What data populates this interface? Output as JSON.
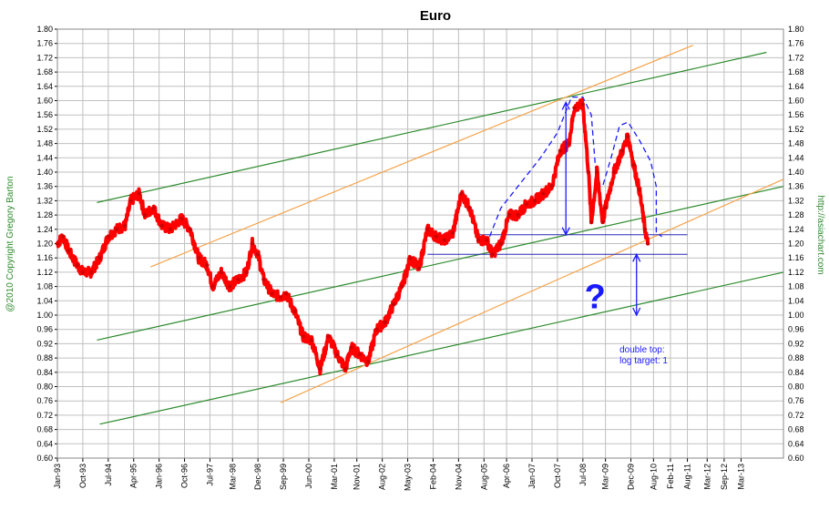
{
  "chart_data": {
    "type": "line",
    "title": "Euro",
    "left_side_label": "@2010 Copyright Gregory Barton",
    "right_side_label": "http://asiachart.com",
    "y_ticks": [
      0.6,
      0.64,
      0.68,
      0.72,
      0.76,
      0.8,
      0.84,
      0.88,
      0.92,
      0.96,
      1.0,
      1.04,
      1.08,
      1.12,
      1.16,
      1.2,
      1.24,
      1.28,
      1.32,
      1.36,
      1.4,
      1.44,
      1.48,
      1.52,
      1.56,
      1.6,
      1.64,
      1.68,
      1.72,
      1.76,
      1.8
    ],
    "y_tick_labels": [
      "0.60",
      "0.64",
      "0.68",
      "0.72",
      "0.76",
      "0.80",
      "0.84",
      "0.88",
      "0.92",
      "0.96",
      "1.00",
      "1.04",
      "1.08",
      "1.12",
      "1.16",
      "1.20",
      "1.24",
      "1.28",
      "1.32",
      "1.36",
      "1.40",
      "1.44",
      "1.48",
      "1.52",
      "1.56",
      "1.60",
      "1.64",
      "1.68",
      "1.72",
      "1.76",
      "1.80"
    ],
    "ylim": [
      0.6,
      1.8
    ],
    "xlim": [
      "1993-01",
      "2014-06"
    ],
    "x_ticks": [
      {
        "label": "Jan-93",
        "date": "1993-01"
      },
      {
        "label": "Oct-93",
        "date": "1993-10"
      },
      {
        "label": "Jul-94",
        "date": "1994-07"
      },
      {
        "label": "Apr-95",
        "date": "1995-04"
      },
      {
        "label": "Jan-96",
        "date": "1996-01"
      },
      {
        "label": "Oct-96",
        "date": "1996-10"
      },
      {
        "label": "Jul-97",
        "date": "1997-07"
      },
      {
        "label": "Mar-98",
        "date": "1998-03"
      },
      {
        "label": "Dec-98",
        "date": "1998-12"
      },
      {
        "label": "Sep-99",
        "date": "1999-09"
      },
      {
        "label": "Jun-00",
        "date": "2000-06"
      },
      {
        "label": "Mar-01",
        "date": "2001-03"
      },
      {
        "label": "Nov-01",
        "date": "2001-11"
      },
      {
        "label": "Aug-02",
        "date": "2002-08"
      },
      {
        "label": "May-03",
        "date": "2003-05"
      },
      {
        "label": "Feb-04",
        "date": "2004-02"
      },
      {
        "label": "Nov-04",
        "date": "2004-11"
      },
      {
        "label": "Aug-05",
        "date": "2005-08"
      },
      {
        "label": "Apr-06",
        "date": "2006-04"
      },
      {
        "label": "Jan-07",
        "date": "2007-01"
      },
      {
        "label": "Oct-07",
        "date": "2007-10"
      },
      {
        "label": "Jul-08",
        "date": "2008-07"
      },
      {
        "label": "Mar-09",
        "date": "2009-03"
      },
      {
        "label": "Dec-09",
        "date": "2009-12"
      },
      {
        "label": "Aug-10",
        "date": "2010-08"
      },
      {
        "label": "Feb-11",
        "date": "2011-02"
      },
      {
        "label": "Aug-11",
        "date": "2011-08"
      },
      {
        "label": "Mar-12",
        "date": "2012-03"
      },
      {
        "label": "Sep-12",
        "date": "2012-09"
      },
      {
        "label": "Mar-13",
        "date": "2013-03"
      }
    ],
    "grid": true,
    "legend": "none",
    "series": [
      {
        "color": "#ff0000",
        "points": [
          [
            "1993-01",
            1.2
          ],
          [
            "1993-03",
            1.22
          ],
          [
            "1993-05",
            1.18
          ],
          [
            "1993-08",
            1.14
          ],
          [
            "1993-10",
            1.12
          ],
          [
            "1994-01",
            1.12
          ],
          [
            "1994-04",
            1.16
          ],
          [
            "1994-07",
            1.22
          ],
          [
            "1994-10",
            1.24
          ],
          [
            "1995-01",
            1.25
          ],
          [
            "1995-03",
            1.32
          ],
          [
            "1995-06",
            1.34
          ],
          [
            "1995-08",
            1.28
          ],
          [
            "1995-11",
            1.3
          ],
          [
            "1996-02",
            1.25
          ],
          [
            "1996-05",
            1.24
          ],
          [
            "1996-09",
            1.27
          ],
          [
            "1996-12",
            1.24
          ],
          [
            "1997-03",
            1.16
          ],
          [
            "1997-06",
            1.14
          ],
          [
            "1997-08",
            1.08
          ],
          [
            "1997-11",
            1.12
          ],
          [
            "1998-02",
            1.08
          ],
          [
            "1998-05",
            1.1
          ],
          [
            "1998-08",
            1.12
          ],
          [
            "1998-10",
            1.2
          ],
          [
            "1998-12",
            1.17
          ],
          [
            "1999-02",
            1.1
          ],
          [
            "1999-05",
            1.06
          ],
          [
            "1999-08",
            1.05
          ],
          [
            "1999-10",
            1.06
          ],
          [
            "2000-01",
            1.01
          ],
          [
            "2000-04",
            0.94
          ],
          [
            "2000-07",
            0.93
          ],
          [
            "2000-10",
            0.85
          ],
          [
            "2001-01",
            0.94
          ],
          [
            "2001-04",
            0.89
          ],
          [
            "2001-07",
            0.85
          ],
          [
            "2001-09",
            0.91
          ],
          [
            "2001-12",
            0.89
          ],
          [
            "2002-03",
            0.87
          ],
          [
            "2002-06",
            0.96
          ],
          [
            "2002-09",
            0.98
          ],
          [
            "2002-12",
            1.03
          ],
          [
            "2003-03",
            1.08
          ],
          [
            "2003-06",
            1.16
          ],
          [
            "2003-09",
            1.13
          ],
          [
            "2003-12",
            1.24
          ],
          [
            "2004-03",
            1.22
          ],
          [
            "2004-06",
            1.21
          ],
          [
            "2004-09",
            1.23
          ],
          [
            "2004-12",
            1.34
          ],
          [
            "2005-03",
            1.3
          ],
          [
            "2005-06",
            1.21
          ],
          [
            "2005-09",
            1.21
          ],
          [
            "2005-11",
            1.17
          ],
          [
            "2006-02",
            1.2
          ],
          [
            "2006-05",
            1.28
          ],
          [
            "2006-08",
            1.28
          ],
          [
            "2006-11",
            1.31
          ],
          [
            "2007-02",
            1.32
          ],
          [
            "2007-05",
            1.34
          ],
          [
            "2007-08",
            1.36
          ],
          [
            "2007-11",
            1.46
          ],
          [
            "2008-02",
            1.48
          ],
          [
            "2008-04",
            1.58
          ],
          [
            "2008-07",
            1.59
          ],
          [
            "2008-09",
            1.4
          ],
          [
            "2008-10",
            1.26
          ],
          [
            "2008-12",
            1.4
          ],
          [
            "2009-02",
            1.26
          ],
          [
            "2009-03",
            1.3
          ],
          [
            "2009-06",
            1.4
          ],
          [
            "2009-09",
            1.46
          ],
          [
            "2009-11",
            1.5
          ],
          [
            "2010-01",
            1.42
          ],
          [
            "2010-03",
            1.35
          ],
          [
            "2010-05",
            1.24
          ],
          [
            "2010-06",
            1.2
          ]
        ]
      }
    ],
    "trendlines_green": [
      [
        [
          "1994-03",
          1.315
        ],
        [
          "2013-12",
          1.735
        ]
      ],
      [
        [
          "1994-03",
          0.93
        ],
        [
          "2014-06",
          1.36
        ]
      ],
      [
        [
          "1994-04",
          0.695
        ],
        [
          "2014-06",
          1.12
        ]
      ]
    ],
    "trendlines_orange": [
      [
        [
          "1995-10",
          1.135
        ],
        [
          "2011-10",
          1.755
        ]
      ],
      [
        [
          "1999-08",
          0.755
        ],
        [
          "2014-06",
          1.38
        ]
      ]
    ],
    "horizontal_levels": [
      {
        "y": 1.225,
        "from": "2005-06",
        "to": "2011-08"
      },
      {
        "y": 1.17,
        "from": "2003-12",
        "to": "2011-08"
      }
    ],
    "arrows": [
      {
        "x": "2008-01",
        "from": 1.595,
        "to": 1.225
      },
      {
        "x": "2010-02",
        "from": 1.17,
        "to": 1.0
      }
    ],
    "dashed_outline": [
      [
        "2005-10",
        1.22
      ],
      [
        "2006-02",
        1.3
      ],
      [
        "2006-10",
        1.38
      ],
      [
        "2007-04",
        1.44
      ],
      [
        "2007-10",
        1.51
      ],
      [
        "2008-03",
        1.61
      ],
      [
        "2008-07",
        1.61
      ],
      [
        "2008-10",
        1.56
      ],
      [
        "2008-12",
        1.36
      ],
      [
        "2009-02",
        1.36
      ],
      [
        "2009-05",
        1.44
      ],
      [
        "2009-08",
        1.53
      ],
      [
        "2009-11",
        1.54
      ],
      [
        "2010-03",
        1.49
      ],
      [
        "2010-07",
        1.43
      ],
      [
        "2010-09",
        1.36
      ],
      [
        "2010-09",
        1.23
      ],
      [
        "2010-11",
        1.22
      ]
    ],
    "annotations": [
      {
        "text": "?",
        "x": "2008-01",
        "y": 1.06,
        "big": true
      },
      {
        "text": "double top:",
        "x": "2009-08",
        "y": 0.895,
        "big": false
      },
      {
        "text": "log target: 1",
        "x": "2009-08",
        "y": 0.865,
        "big": false
      }
    ],
    "colors": {
      "grid": "#c0c0c0",
      "green": "#2c8a2c",
      "orange": "#f5a34a",
      "blue": "#1a1aff",
      "navy": "#2a2ab5",
      "price": "#ff0000",
      "side_label": "#2c8a2c"
    }
  }
}
